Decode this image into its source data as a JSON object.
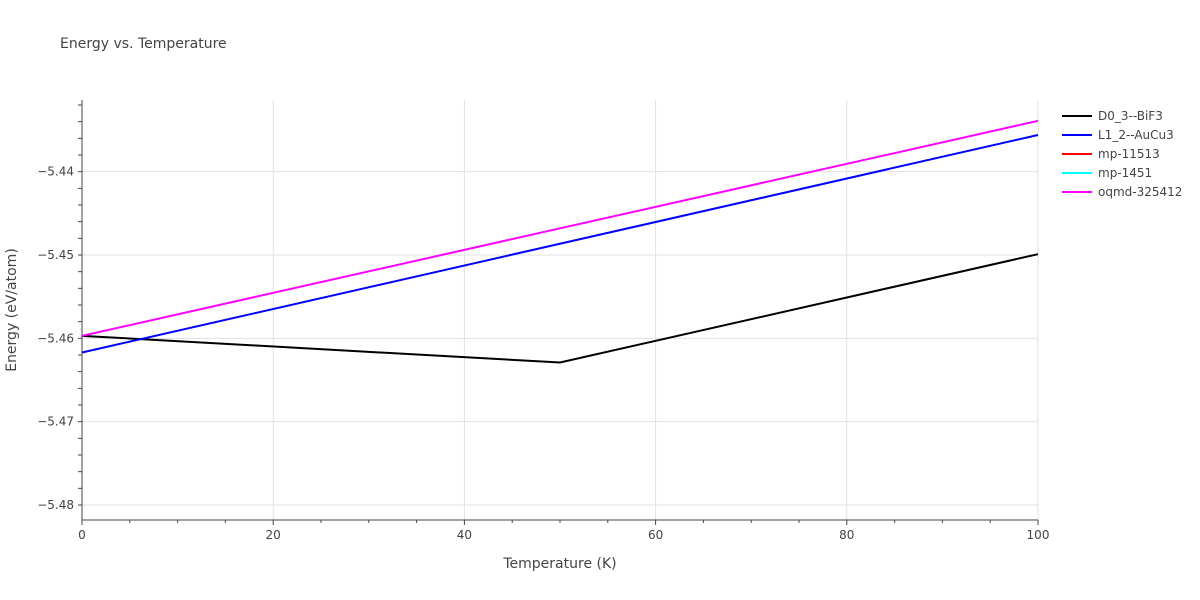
{
  "chart_data": {
    "type": "line",
    "title": "Energy vs. Temperature",
    "xlabel": "Temperature (K)",
    "ylabel": "Energy (eV/atom)",
    "xlim": [
      0,
      100
    ],
    "ylim": [
      -5.4818,
      -5.4314
    ],
    "xticks": [
      "0",
      "20",
      "40",
      "60",
      "80",
      "100"
    ],
    "yticks": [
      "−5.44",
      "−5.45",
      "−5.46",
      "−5.47",
      "−5.48"
    ],
    "grid": true,
    "legend_position": "right",
    "series": [
      {
        "name": "D0_3--BiF3",
        "color": "#000000",
        "x": [
          0,
          50,
          100
        ],
        "y": [
          -5.4597,
          -5.4629,
          -5.4499
        ]
      },
      {
        "name": "L1_2--AuCu3",
        "color": "#0000ff",
        "x": [
          0,
          100
        ],
        "y": [
          -5.4617,
          -5.4356
        ]
      },
      {
        "name": "mp-11513",
        "color": "#ff0000",
        "x": [],
        "y": []
      },
      {
        "name": "mp-1451",
        "color": "#00ffff",
        "x": [],
        "y": []
      },
      {
        "name": "oqmd-325412",
        "color": "#ff00ff",
        "x": [
          0,
          100
        ],
        "y": [
          -5.4597,
          -5.4339
        ]
      }
    ]
  },
  "legend": [
    {
      "label": "D0_3--BiF3",
      "color": "#000000"
    },
    {
      "label": "L1_2--AuCu3",
      "color": "#0000ff"
    },
    {
      "label": "mp-11513",
      "color": "#ff0000"
    },
    {
      "label": "mp-1451",
      "color": "#00ffff"
    },
    {
      "label": "oqmd-325412",
      "color": "#ff00ff"
    }
  ]
}
